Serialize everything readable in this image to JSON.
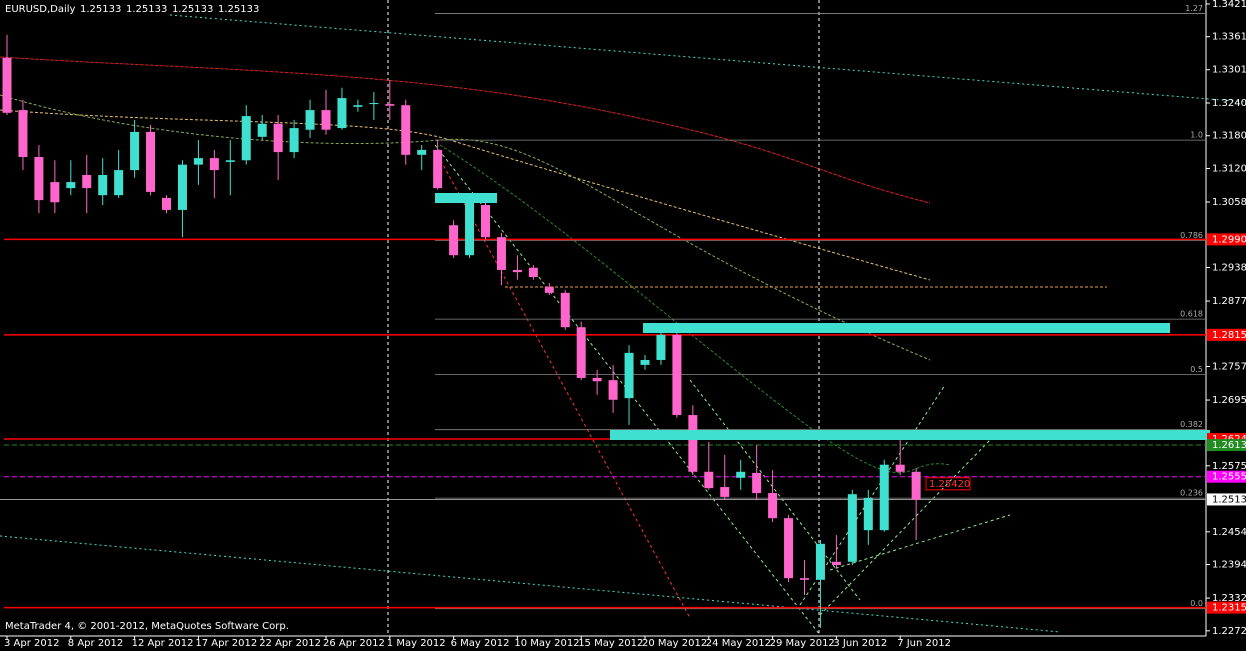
{
  "chart_data": {
    "type": "candlestick",
    "title": "EURUSD,Daily",
    "ohlc_header": [
      1.25133,
      1.25133,
      1.25133,
      1.25133
    ],
    "footer": "MetaTrader 4, © 2001-2012, MetaQuotes Software Corp.",
    "up_color": "#40e0d0",
    "down_color": "#ff66cc",
    "categories": [
      "3 Apr 2012",
      null,
      null,
      null,
      "8 Apr 2012",
      null,
      null,
      null,
      "12 Apr 2012",
      null,
      null,
      null,
      "17 Apr 2012",
      null,
      null,
      null,
      "22 Apr 2012",
      null,
      null,
      null,
      "26 Apr 2012",
      null,
      null,
      null,
      "1 May 2012",
      null,
      null,
      null,
      "6 May 2012",
      null,
      null,
      null,
      "10 May 2012",
      null,
      null,
      null,
      "15 May 2012",
      null,
      null,
      null,
      "20 May 2012",
      null,
      null,
      null,
      "24 May 2012",
      null,
      null,
      null,
      "29 May 2012",
      null,
      null,
      null,
      "3 Jun 2012",
      null,
      null,
      null,
      "7 Jun 2012",
      null
    ],
    "open": [
      1.3323,
      1.3227,
      1.3141,
      1.3095,
      1.3084,
      1.3108,
      1.3071,
      1.3071,
      1.3117,
      1.3187,
      1.3066,
      1.3044,
      1.3127,
      1.3139,
      1.3132,
      1.3135,
      1.3178,
      1.3202,
      1.315,
      1.3191,
      1.3227,
      1.3194,
      1.3233,
      1.3238,
      1.3238,
      1.3236,
      1.3145,
      1.3154,
      1.3016,
      1.2961,
      1.3053,
      1.2994,
      1.2934,
      1.2938,
      1.2903,
      1.2892,
      1.2829,
      1.2736,
      1.2732,
      1.2699,
      1.276,
      1.2769,
      1.2815,
      1.2668,
      1.2564,
      1.2536,
      1.2553,
      1.2562,
      1.2525,
      1.2479,
      1.2369,
      1.2366,
      1.2399,
      1.2399,
      1.2457,
      1.2457,
      1.2577,
      1.2564
    ],
    "high": [
      1.3365,
      1.3246,
      1.3163,
      1.3135,
      1.3135,
      1.3145,
      1.3139,
      1.3154,
      1.3209,
      1.32,
      1.3071,
      1.3135,
      1.3172,
      1.3154,
      1.3172,
      1.3236,
      1.3218,
      1.3218,
      1.3209,
      1.3246,
      1.3264,
      1.3268,
      1.3246,
      1.326,
      1.3282,
      1.3246,
      1.3163,
      1.3172,
      1.3025,
      1.3062,
      1.3057,
      1.3002,
      1.2961,
      1.2943,
      1.291,
      1.2897,
      1.2839,
      1.2751,
      1.276,
      1.2796,
      1.2778,
      1.2824,
      1.2824,
      1.2686,
      1.2619,
      1.2595,
      1.2586,
      1.2613,
      1.2567,
      1.2485,
      1.2402,
      1.2439,
      1.2448,
      1.2531,
      1.2531,
      1.2586,
      1.2622,
      1.2571
    ],
    "low": [
      1.3218,
      1.3117,
      1.3038,
      1.3038,
      1.3071,
      1.3038,
      1.3053,
      1.3066,
      1.3103,
      1.3071,
      1.3038,
      1.2994,
      1.309,
      1.3066,
      1.3071,
      1.3127,
      1.3172,
      1.3099,
      1.3139,
      1.3176,
      1.3182,
      1.3191,
      1.3224,
      1.3209,
      1.3209,
      1.3127,
      1.3117,
      1.3081,
      1.2956,
      1.2956,
      1.2989,
      1.2906,
      1.2916,
      1.2916,
      1.2888,
      1.2824,
      1.2732,
      1.2705,
      1.2672,
      1.265,
      1.2751,
      1.276,
      1.2663,
      1.2558,
      1.2531,
      1.2512,
      1.2531,
      1.2512,
      1.2472,
      1.2362,
      1.2338,
      1.2278,
      1.2388,
      1.2393,
      1.243,
      1.2454,
      1.2558,
      1.2439
    ],
    "close": [
      1.3222,
      1.3141,
      1.3062,
      1.3058,
      1.3095,
      1.3084,
      1.3108,
      1.3117,
      1.3187,
      1.3077,
      1.3044,
      1.3127,
      1.3139,
      1.3117,
      1.3135,
      1.3216,
      1.3202,
      1.315,
      1.3194,
      1.3227,
      1.3191,
      1.3249,
      1.3236,
      1.324,
      1.3235,
      1.3145,
      1.3154,
      1.3084,
      1.2961,
      1.3057,
      1.2994,
      1.2934,
      1.293,
      1.2921,
      1.2892,
      1.2829,
      1.2736,
      1.273,
      1.2696,
      1.2782,
      1.2769,
      1.2815,
      1.2668,
      1.2564,
      1.2534,
      1.2518,
      1.2564,
      1.2525,
      1.2479,
      1.2369,
      1.2366,
      1.2432,
      1.2393,
      1.2523,
      1.2516,
      1.2577,
      1.2564,
      1.2513
    ],
    "ylim": [
      1.2263,
      1.34288
    ],
    "yticks": [
      1.34215,
      1.33615,
      {
        "value": 1.3301,
        "label": "1.33010"
      },
      {
        "value": 1.324,
        "label": "1.32400"
      },
      {
        "value": 1.318,
        "label": "1.31800"
      },
      {
        "value": 1.312,
        "label": "1.31200"
      },
      1.30585,
      1.29385,
      {
        "value": 1.2877,
        "label": "1.28770"
      },
      {
        "value": 1.2757,
        "label": "1.27570"
      },
      1.26955,
      {
        "value": 1.2575,
        "label": "1.25750"
      },
      {
        "value": 1.2454,
        "label": "1.24540"
      },
      {
        "value": 1.2394,
        "label": "1.23940"
      },
      1.23325,
      1.22725
    ],
    "hlines": [
      {
        "value": 1.299,
        "label": "1.29900",
        "color": "#ff0000",
        "dashed": false
      },
      {
        "value": 1.2815,
        "label": "1.28150",
        "color": "#ff0000",
        "dashed": false
      },
      {
        "value": 1.2624,
        "label": "1.26240",
        "color": "#ff0000",
        "dashed": false
      },
      {
        "value": 1.2613,
        "label": "1.26130",
        "color": "#228b22",
        "dashed": true
      },
      {
        "value": 1.2555,
        "label": "1.25550",
        "color": "#ff00ff",
        "dashed": true
      },
      {
        "value": 1.2315,
        "label": "1.23150",
        "color": "#ff0000",
        "dashed": false
      }
    ],
    "current_price": 1.25133,
    "price_label": {
      "value": 1.2542,
      "label": "1.25420"
    },
    "fib": {
      "high": 1.3172,
      "low": 1.2313,
      "levels": [
        1.27,
        {
          "value": 1,
          "label": "1.0"
        },
        0.786,
        0.618,
        0.5,
        0.382,
        0.236,
        {
          "value": 0,
          "label": "0.0"
        }
      ]
    }
  }
}
